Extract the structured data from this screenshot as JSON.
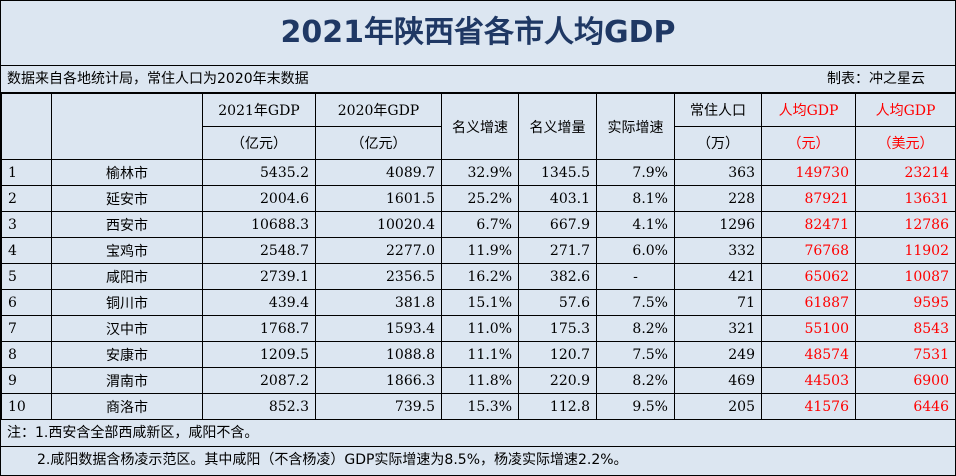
{
  "title": "2021年陕西省各市人均GDP",
  "source_note": "数据来自各地统计局，常住人口为2020年末数据",
  "maker": "制表：冲之星云",
  "headers": {
    "gdp2021_line1": "2021年GDP",
    "gdp2021_line2": "（亿元）",
    "gdp2020_line1": "2020年GDP",
    "gdp2020_line2": "（亿元）",
    "nominal_growth": "名义增速",
    "nominal_increase": "名义增量",
    "real_growth": "实际增速",
    "pop_line1": "常住人口",
    "pop_line2": "（万）",
    "pcgdp_yuan_line1": "人均GDP",
    "pcgdp_yuan_line2": "（元）",
    "pcgdp_usd_line1": "人均GDP",
    "pcgdp_usd_line2": "（美元）"
  },
  "rows": [
    {
      "rank": "1",
      "city": "榆林市",
      "gdp2021": "5435.2",
      "gdp2020": "4089.7",
      "nominal_growth": "32.9%",
      "nominal_increase": "1345.5",
      "real_growth": "7.9%",
      "population": "363",
      "pcgdp_yuan": "149730",
      "pcgdp_usd": "23214"
    },
    {
      "rank": "2",
      "city": "延安市",
      "gdp2021": "2004.6",
      "gdp2020": "1601.5",
      "nominal_growth": "25.2%",
      "nominal_increase": "403.1",
      "real_growth": "8.1%",
      "population": "228",
      "pcgdp_yuan": "87921",
      "pcgdp_usd": "13631"
    },
    {
      "rank": "3",
      "city": "西安市",
      "gdp2021": "10688.3",
      "gdp2020": "10020.4",
      "nominal_growth": "6.7%",
      "nominal_increase": "667.9",
      "real_growth": "4.1%",
      "population": "1296",
      "pcgdp_yuan": "82471",
      "pcgdp_usd": "12786"
    },
    {
      "rank": "4",
      "city": "宝鸡市",
      "gdp2021": "2548.7",
      "gdp2020": "2277.0",
      "nominal_growth": "11.9%",
      "nominal_increase": "271.7",
      "real_growth": "6.0%",
      "population": "332",
      "pcgdp_yuan": "76768",
      "pcgdp_usd": "11902"
    },
    {
      "rank": "5",
      "city": "咸阳市",
      "gdp2021": "2739.1",
      "gdp2020": "2356.5",
      "nominal_growth": "16.2%",
      "nominal_increase": "382.6",
      "real_growth": "-",
      "population": "421",
      "pcgdp_yuan": "65062",
      "pcgdp_usd": "10087"
    },
    {
      "rank": "6",
      "city": "铜川市",
      "gdp2021": "439.4",
      "gdp2020": "381.8",
      "nominal_growth": "15.1%",
      "nominal_increase": "57.6",
      "real_growth": "7.5%",
      "population": "71",
      "pcgdp_yuan": "61887",
      "pcgdp_usd": "9595"
    },
    {
      "rank": "7",
      "city": "汉中市",
      "gdp2021": "1768.7",
      "gdp2020": "1593.4",
      "nominal_growth": "11.0%",
      "nominal_increase": "175.3",
      "real_growth": "8.2%",
      "population": "321",
      "pcgdp_yuan": "55100",
      "pcgdp_usd": "8543"
    },
    {
      "rank": "8",
      "city": "安康市",
      "gdp2021": "1209.5",
      "gdp2020": "1088.8",
      "nominal_growth": "11.1%",
      "nominal_increase": "120.7",
      "real_growth": "7.5%",
      "population": "249",
      "pcgdp_yuan": "48574",
      "pcgdp_usd": "7531"
    },
    {
      "rank": "9",
      "city": "渭南市",
      "gdp2021": "2087.2",
      "gdp2020": "1866.3",
      "nominal_growth": "11.8%",
      "nominal_increase": "220.9",
      "real_growth": "8.2%",
      "population": "469",
      "pcgdp_yuan": "44503",
      "pcgdp_usd": "6900"
    },
    {
      "rank": "10",
      "city": "商洛市",
      "gdp2021": "852.3",
      "gdp2020": "739.5",
      "nominal_growth": "15.3%",
      "nominal_increase": "112.8",
      "real_growth": "9.5%",
      "population": "205",
      "pcgdp_yuan": "41576",
      "pcgdp_usd": "6446"
    }
  ],
  "notes": {
    "note1": "注：1.西安含全部西咸新区，咸阳不含。",
    "note2": "2.咸阳数据含杨凌示范区。其中咸阳（不含杨凌）GDP实际增速为8.5%，杨凌实际增速2.2%。"
  },
  "colors": {
    "title": "#1f3864",
    "background": "#dce6f1",
    "highlight": "#ff0000"
  }
}
